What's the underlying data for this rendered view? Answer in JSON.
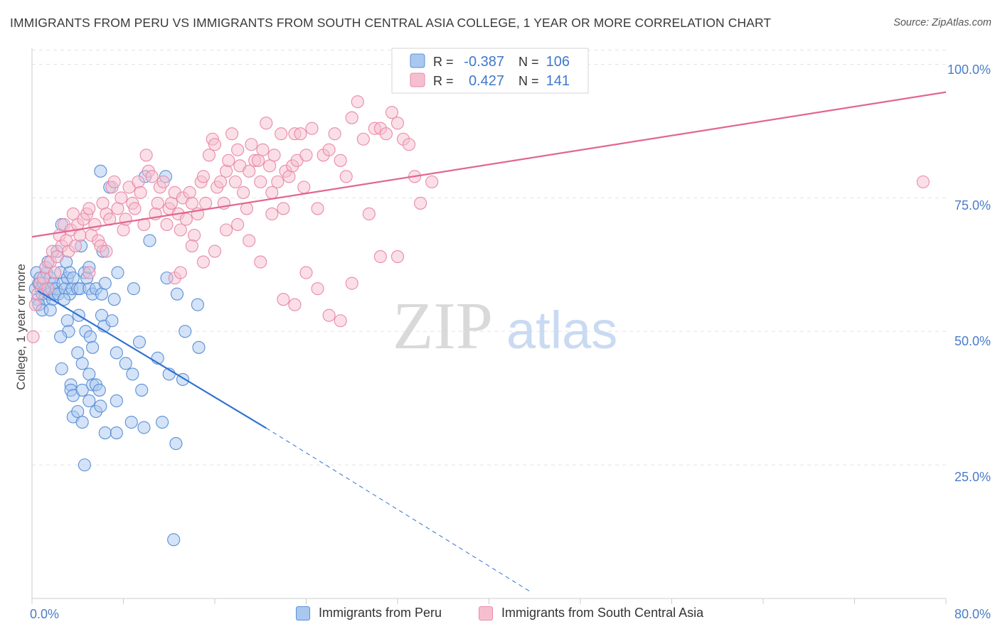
{
  "title": "IMMIGRANTS FROM PERU VS IMMIGRANTS FROM SOUTH CENTRAL ASIA COLLEGE, 1 YEAR OR MORE CORRELATION CHART",
  "source": "Source: ZipAtlas.com",
  "watermark": {
    "zip": "ZIP",
    "atlas": "atlas"
  },
  "colors": {
    "blue_fill": "#a9c8f0",
    "blue_stroke": "#5b8fd6",
    "blue_line": "#2e72d2",
    "pink_fill": "#f6bfd0",
    "pink_stroke": "#e98aa9",
    "pink_line": "#e2668f",
    "axis_label": "#4a7cc9",
    "grid": "#dddddd"
  },
  "stats_legend": {
    "rows": [
      {
        "r_label": "R =",
        "r_value": "-0.387",
        "n_label": "N =",
        "n_value": "106"
      },
      {
        "r_label": "R =",
        "r_value": "0.427",
        "n_label": "N =",
        "n_value": "141"
      }
    ]
  },
  "chart_data": {
    "type": "scatter",
    "title": "IMMIGRANTS FROM PERU VS IMMIGRANTS FROM SOUTH CENTRAL ASIA COLLEGE, 1 YEAR OR MORE CORRELATION CHART",
    "xlabel": "",
    "ylabel": "College, 1 year or more",
    "xlim": [
      0,
      80
    ],
    "ylim": [
      0,
      103
    ],
    "x_tick_labels": [
      "0.0%",
      "80.0%"
    ],
    "y_ticks": [
      25,
      50,
      75,
      100
    ],
    "y_tick_labels": [
      "25.0%",
      "50.0%",
      "75.0%",
      "100.0%"
    ],
    "legend": [
      "Immigrants from Peru",
      "Immigrants from South Central Asia"
    ],
    "series": [
      {
        "name": "Immigrants from Peru",
        "color": "#5b8fd6",
        "r": -0.387,
        "n": 106,
        "trend": {
          "x": [
            0.5,
            20.5
          ],
          "y": [
            57.6,
            31.9
          ]
        },
        "trend_dashed": {
          "x": [
            20.5,
            43.6
          ],
          "y": [
            31.9,
            1.3
          ]
        },
        "points": [
          [
            0.3,
            58
          ],
          [
            0.4,
            61
          ],
          [
            0.5,
            56
          ],
          [
            0.6,
            59
          ],
          [
            0.7,
            60
          ],
          [
            0.8,
            58
          ],
          [
            0.9,
            57
          ],
          [
            1.0,
            59
          ],
          [
            1.1,
            56
          ],
          [
            1.2,
            58
          ],
          [
            1.3,
            61
          ],
          [
            1.4,
            58
          ],
          [
            1.5,
            57
          ],
          [
            1.6,
            60
          ],
          [
            1.7,
            58
          ],
          [
            1.8,
            56
          ],
          [
            1.9,
            59
          ],
          [
            2.0,
            57
          ],
          [
            2.1,
            58
          ],
          [
            2.3,
            57
          ],
          [
            2.5,
            61
          ],
          [
            2.7,
            59
          ],
          [
            2.9,
            58
          ],
          [
            3.1,
            60
          ],
          [
            3.3,
            57
          ],
          [
            3.5,
            58
          ],
          [
            0.6,
            55
          ],
          [
            0.9,
            54
          ],
          [
            1.2,
            62
          ],
          [
            1.4,
            63
          ],
          [
            1.6,
            54
          ],
          [
            2.2,
            65
          ],
          [
            2.6,
            70
          ],
          [
            3.0,
            63
          ],
          [
            3.3,
            61
          ],
          [
            3.6,
            60
          ],
          [
            4.0,
            58
          ],
          [
            4.2,
            58
          ],
          [
            4.6,
            61
          ],
          [
            5.0,
            58
          ],
          [
            5.3,
            57
          ],
          [
            5.6,
            58
          ],
          [
            6.1,
            57
          ],
          [
            4.3,
            66
          ],
          [
            4.8,
            60
          ],
          [
            5.0,
            62
          ],
          [
            2.8,
            56
          ],
          [
            3.1,
            52
          ],
          [
            4.1,
            53
          ],
          [
            3.2,
            50
          ],
          [
            4.7,
            50
          ],
          [
            5.1,
            49
          ],
          [
            6.1,
            53
          ],
          [
            6.3,
            51
          ],
          [
            7.2,
            56
          ],
          [
            5.3,
            47
          ],
          [
            4.4,
            44
          ],
          [
            4.0,
            46
          ],
          [
            2.5,
            49
          ],
          [
            2.6,
            43
          ],
          [
            3.4,
            40
          ],
          [
            3.4,
            39
          ],
          [
            3.6,
            38
          ],
          [
            4.4,
            39
          ],
          [
            5.0,
            42
          ],
          [
            5.0,
            37
          ],
          [
            5.3,
            40
          ],
          [
            5.6,
            40
          ],
          [
            5.9,
            39
          ],
          [
            3.6,
            34
          ],
          [
            4.0,
            35
          ],
          [
            4.4,
            33
          ],
          [
            5.6,
            35
          ],
          [
            6.0,
            36
          ],
          [
            6.4,
            31
          ],
          [
            7.4,
            37
          ],
          [
            7.4,
            31
          ],
          [
            8.7,
            33
          ],
          [
            8.8,
            42
          ],
          [
            9.4,
            48
          ],
          [
            11.0,
            45
          ],
          [
            11.4,
            33
          ],
          [
            12.0,
            42
          ],
          [
            12.6,
            29
          ],
          [
            13.2,
            41
          ],
          [
            14.6,
            47
          ],
          [
            10.3,
            67
          ],
          [
            11.7,
            79
          ],
          [
            6.0,
            80
          ],
          [
            6.8,
            77
          ],
          [
            6.4,
            59
          ],
          [
            7.0,
            52
          ],
          [
            7.4,
            46
          ],
          [
            8.2,
            44
          ],
          [
            9.6,
            39
          ],
          [
            9.8,
            32
          ],
          [
            9.9,
            79
          ],
          [
            4.6,
            25
          ],
          [
            11.8,
            60
          ],
          [
            12.7,
            57
          ],
          [
            13.4,
            50
          ],
          [
            14.5,
            55
          ],
          [
            6.2,
            65
          ],
          [
            7.5,
            61
          ],
          [
            8.9,
            58
          ],
          [
            12.4,
            11
          ]
        ]
      },
      {
        "name": "Immigrants from South Central Asia",
        "color": "#e98aa9",
        "r": 0.427,
        "n": 141,
        "trend": {
          "x": [
            0,
            80
          ],
          "y": [
            67.7,
            94.8
          ]
        },
        "points": [
          [
            0.1,
            49
          ],
          [
            0.3,
            55
          ],
          [
            0.5,
            57
          ],
          [
            0.7,
            59
          ],
          [
            1.0,
            60
          ],
          [
            1.2,
            62
          ],
          [
            1.4,
            58
          ],
          [
            1.6,
            63
          ],
          [
            1.8,
            65
          ],
          [
            2.0,
            61
          ],
          [
            2.2,
            64
          ],
          [
            2.4,
            68
          ],
          [
            2.6,
            66
          ],
          [
            2.8,
            70
          ],
          [
            3.0,
            67
          ],
          [
            3.2,
            65
          ],
          [
            3.4,
            69
          ],
          [
            3.6,
            72
          ],
          [
            3.8,
            66
          ],
          [
            4.0,
            70
          ],
          [
            4.2,
            68
          ],
          [
            4.5,
            71
          ],
          [
            4.8,
            72
          ],
          [
            5.0,
            73
          ],
          [
            5.2,
            68
          ],
          [
            5.5,
            70
          ],
          [
            5.8,
            67
          ],
          [
            6.0,
            66
          ],
          [
            6.2,
            74
          ],
          [
            6.5,
            72
          ],
          [
            6.8,
            71
          ],
          [
            7.0,
            77
          ],
          [
            7.2,
            78
          ],
          [
            7.5,
            73
          ],
          [
            7.8,
            75
          ],
          [
            8.0,
            69
          ],
          [
            8.2,
            71
          ],
          [
            8.5,
            77
          ],
          [
            8.8,
            74
          ],
          [
            9.0,
            73
          ],
          [
            9.3,
            78
          ],
          [
            9.5,
            76
          ],
          [
            9.8,
            70
          ],
          [
            10.0,
            83
          ],
          [
            10.2,
            80
          ],
          [
            10.5,
            79
          ],
          [
            10.8,
            72
          ],
          [
            11.0,
            74
          ],
          [
            11.2,
            77
          ],
          [
            11.5,
            78
          ],
          [
            11.8,
            70
          ],
          [
            12.0,
            73
          ],
          [
            12.2,
            74
          ],
          [
            12.5,
            76
          ],
          [
            12.8,
            72
          ],
          [
            13.0,
            69
          ],
          [
            13.2,
            75
          ],
          [
            13.5,
            71
          ],
          [
            13.8,
            76
          ],
          [
            14.0,
            74
          ],
          [
            14.2,
            68
          ],
          [
            14.5,
            72
          ],
          [
            14.8,
            78
          ],
          [
            15.0,
            79
          ],
          [
            15.2,
            74
          ],
          [
            15.5,
            83
          ],
          [
            15.8,
            86
          ],
          [
            16.0,
            85
          ],
          [
            16.2,
            77
          ],
          [
            16.5,
            78
          ],
          [
            16.8,
            74
          ],
          [
            17.0,
            80
          ],
          [
            17.2,
            82
          ],
          [
            17.5,
            87
          ],
          [
            17.8,
            78
          ],
          [
            18.0,
            84
          ],
          [
            18.2,
            81
          ],
          [
            18.5,
            76
          ],
          [
            18.8,
            73
          ],
          [
            19.0,
            80
          ],
          [
            19.2,
            85
          ],
          [
            19.5,
            82
          ],
          [
            19.8,
            82
          ],
          [
            20.0,
            78
          ],
          [
            20.2,
            84
          ],
          [
            20.5,
            89
          ],
          [
            20.8,
            81
          ],
          [
            21.0,
            76
          ],
          [
            21.2,
            83
          ],
          [
            21.5,
            78
          ],
          [
            21.8,
            87
          ],
          [
            22.0,
            73
          ],
          [
            22.2,
            80
          ],
          [
            22.5,
            79
          ],
          [
            22.8,
            81
          ],
          [
            23.0,
            87
          ],
          [
            23.2,
            82
          ],
          [
            23.5,
            87
          ],
          [
            23.8,
            77
          ],
          [
            24.0,
            83
          ],
          [
            24.5,
            88
          ],
          [
            25.0,
            73
          ],
          [
            25.5,
            83
          ],
          [
            26.0,
            84
          ],
          [
            26.5,
            87
          ],
          [
            27.0,
            82
          ],
          [
            27.5,
            79
          ],
          [
            28.0,
            90
          ],
          [
            28.5,
            93
          ],
          [
            29.0,
            86
          ],
          [
            29.5,
            72
          ],
          [
            30.0,
            88
          ],
          [
            30.5,
            88
          ],
          [
            31.0,
            87
          ],
          [
            31.5,
            91
          ],
          [
            32.0,
            89
          ],
          [
            32.5,
            86
          ],
          [
            33.0,
            85
          ],
          [
            33.5,
            79
          ],
          [
            34.0,
            74
          ],
          [
            35.0,
            78
          ],
          [
            14.0,
            66
          ],
          [
            15.0,
            63
          ],
          [
            16.0,
            65
          ],
          [
            17.0,
            69
          ],
          [
            18.0,
            70
          ],
          [
            19.0,
            67
          ],
          [
            20.0,
            63
          ],
          [
            21.0,
            72
          ],
          [
            22.0,
            56
          ],
          [
            23.0,
            55
          ],
          [
            24.0,
            61
          ],
          [
            25.0,
            58
          ],
          [
            26.0,
            53
          ],
          [
            27.0,
            52
          ],
          [
            28.0,
            59
          ],
          [
            30.5,
            64
          ],
          [
            32.0,
            64
          ],
          [
            12.5,
            60
          ],
          [
            13.0,
            61
          ],
          [
            78.0,
            78
          ],
          [
            5.0,
            61
          ],
          [
            6.5,
            65
          ]
        ]
      }
    ]
  },
  "axis_labels": {
    "x_left": "0.0%",
    "x_right": "80.0%",
    "y_25": "25.0%",
    "y_50": "50.0%",
    "y_75": "75.0%",
    "y_100": "100.0%",
    "y_axis_title": "College, 1 year or more"
  },
  "bottom_legend": {
    "peru": "Immigrants from Peru",
    "sca": "Immigrants from South Central Asia"
  }
}
